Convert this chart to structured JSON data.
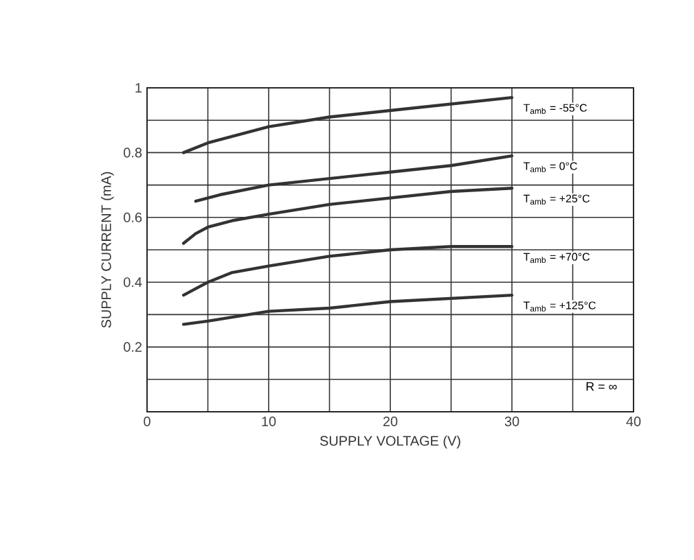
{
  "chart_data": {
    "type": "line",
    "xlabel": "SUPPLY VOLTAGE (V)",
    "ylabel": "SUPPLY CURRENT (mA)",
    "xlim": [
      0,
      40
    ],
    "ylim": [
      0,
      1
    ],
    "xticks": [
      0,
      {
        "value": 5,
        "label": null
      },
      10,
      {
        "value": 15,
        "label": null
      },
      20,
      {
        "value": 25,
        "label": null
      },
      30,
      {
        "value": 35,
        "label": null
      },
      40
    ],
    "yticks": [
      {
        "value": 0.1,
        "label": null
      },
      0.2,
      {
        "value": 0.3,
        "label": null
      },
      0.4,
      {
        "value": 0.5,
        "label": null
      },
      0.6,
      {
        "value": 0.7,
        "label": null
      },
      0.8,
      {
        "value": 0.9,
        "label": null
      },
      1
    ],
    "grid": true,
    "legend": false,
    "marker": "none",
    "line_style": "solid",
    "series": [
      {
        "name": "T$_{amb}$ = -55°C",
        "color": "#333333",
        "x": [
          3,
          5,
          10,
          15,
          20,
          25,
          30
        ],
        "values": [
          0.8,
          0.83,
          0.88,
          0.91,
          0.93,
          0.95,
          0.97
        ]
      },
      {
        "name": "T$_{amb}$ = 0°C",
        "color": "#333333",
        "x": [
          4,
          6,
          10,
          15,
          20,
          25,
          30
        ],
        "values": [
          0.65,
          0.67,
          0.7,
          0.72,
          0.74,
          0.76,
          0.79
        ]
      },
      {
        "name": "T$_{amb}$ = +25°C",
        "color": "#333333",
        "x": [
          3,
          4,
          5,
          7,
          10,
          15,
          20,
          25,
          30
        ],
        "values": [
          0.52,
          0.55,
          0.57,
          0.59,
          0.61,
          0.64,
          0.66,
          0.68,
          0.69
        ]
      },
      {
        "name": "T$_{amb}$ = +70°C",
        "color": "#333333",
        "x": [
          3,
          4,
          5,
          7,
          10,
          15,
          20,
          25,
          30
        ],
        "values": [
          0.36,
          0.38,
          0.4,
          0.43,
          0.45,
          0.48,
          0.5,
          0.51,
          0.51
        ]
      },
      {
        "name": "T$_{amb}$ = +125°C",
        "color": "#333333",
        "x": [
          3,
          5,
          10,
          15,
          20,
          25,
          30
        ],
        "values": [
          0.27,
          0.28,
          0.31,
          0.32,
          0.34,
          0.35,
          0.36
        ]
      }
    ],
    "annotations": [
      "R = ∞"
    ]
  }
}
